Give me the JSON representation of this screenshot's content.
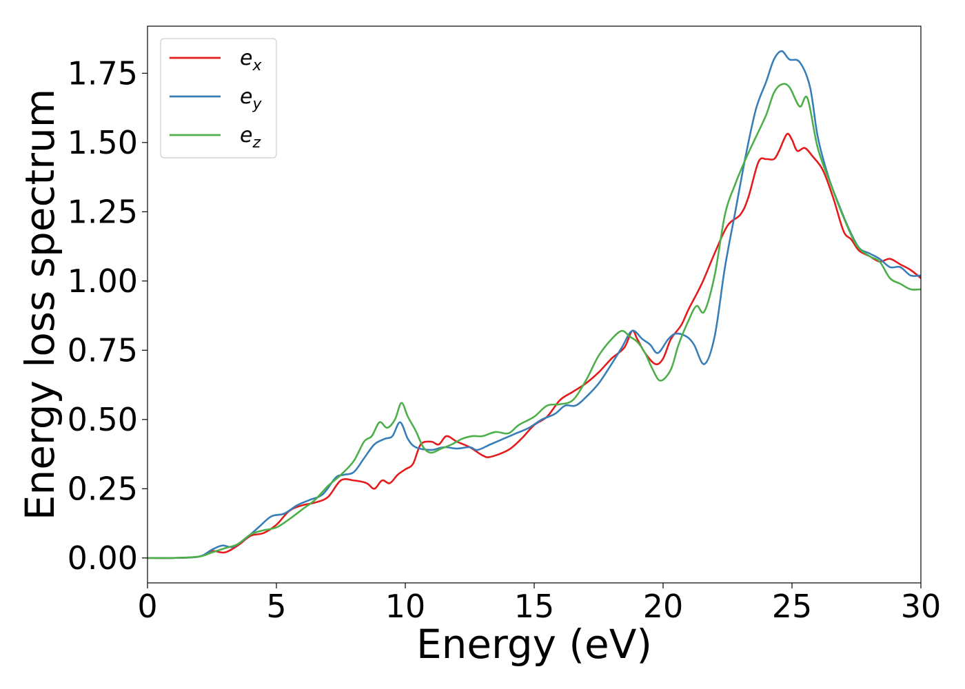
{
  "chart_data": {
    "type": "line",
    "title": "",
    "xlabel": "Energy (eV)",
    "ylabel": "Energy loss spectrum",
    "xlim": [
      0,
      30
    ],
    "ylim": [
      -0.09,
      1.92
    ],
    "xticks": [
      0,
      5,
      10,
      15,
      20,
      25,
      30
    ],
    "xtick_labels": [
      "0",
      "5",
      "10",
      "15",
      "20",
      "25",
      "30"
    ],
    "yticks": [
      0,
      0.25,
      0.5,
      0.75,
      1.0,
      1.25,
      1.5,
      1.75
    ],
    "ytick_labels": [
      "0.00",
      "0.25",
      "0.50",
      "0.75",
      "1.00",
      "1.25",
      "1.50",
      "1.75"
    ],
    "grid": false,
    "legend_position": "top-left",
    "series": [
      {
        "name": "e_x",
        "label_base": "e",
        "label_sub": "x",
        "color": "#e41a1c",
        "points": [
          [
            0,
            0
          ],
          [
            1,
            0
          ],
          [
            2,
            0.005
          ],
          [
            2.5,
            0.025
          ],
          [
            3,
            0.02
          ],
          [
            3.5,
            0.045
          ],
          [
            4,
            0.08
          ],
          [
            4.5,
            0.09
          ],
          [
            5,
            0.12
          ],
          [
            5.5,
            0.17
          ],
          [
            6,
            0.19
          ],
          [
            6.5,
            0.2
          ],
          [
            7,
            0.22
          ],
          [
            7.5,
            0.28
          ],
          [
            8,
            0.28
          ],
          [
            8.5,
            0.27
          ],
          [
            8.8,
            0.25
          ],
          [
            9.1,
            0.28
          ],
          [
            9.4,
            0.27
          ],
          [
            9.7,
            0.3
          ],
          [
            10,
            0.32
          ],
          [
            10.3,
            0.34
          ],
          [
            10.6,
            0.41
          ],
          [
            11,
            0.42
          ],
          [
            11.3,
            0.41
          ],
          [
            11.6,
            0.44
          ],
          [
            12,
            0.42
          ],
          [
            12.5,
            0.4
          ],
          [
            13,
            0.37
          ],
          [
            13.3,
            0.365
          ],
          [
            14,
            0.39
          ],
          [
            14.5,
            0.43
          ],
          [
            15,
            0.48
          ],
          [
            15.5,
            0.51
          ],
          [
            16,
            0.57
          ],
          [
            16.5,
            0.6
          ],
          [
            17,
            0.63
          ],
          [
            17.5,
            0.67
          ],
          [
            18,
            0.72
          ],
          [
            18.5,
            0.76
          ],
          [
            18.8,
            0.82
          ],
          [
            19,
            0.79
          ],
          [
            19.3,
            0.74
          ],
          [
            19.7,
            0.7
          ],
          [
            20,
            0.72
          ],
          [
            20.3,
            0.79
          ],
          [
            20.7,
            0.84
          ],
          [
            21,
            0.9
          ],
          [
            21.5,
            0.99
          ],
          [
            22,
            1.1
          ],
          [
            22.5,
            1.2
          ],
          [
            23,
            1.24
          ],
          [
            23.3,
            1.3
          ],
          [
            23.7,
            1.43
          ],
          [
            24,
            1.44
          ],
          [
            24.3,
            1.44
          ],
          [
            24.5,
            1.47
          ],
          [
            24.8,
            1.53
          ],
          [
            25,
            1.51
          ],
          [
            25.2,
            1.47
          ],
          [
            25.5,
            1.48
          ],
          [
            25.8,
            1.45
          ],
          [
            26.2,
            1.4
          ],
          [
            26.6,
            1.3
          ],
          [
            27,
            1.18
          ],
          [
            27.3,
            1.15
          ],
          [
            27.6,
            1.11
          ],
          [
            28,
            1.09
          ],
          [
            28.4,
            1.07
          ],
          [
            28.8,
            1.08
          ],
          [
            29.2,
            1.06
          ],
          [
            29.6,
            1.04
          ],
          [
            30,
            1.01
          ]
        ]
      },
      {
        "name": "e_y",
        "label_base": "e",
        "label_sub": "y",
        "color": "#377eb8",
        "points": [
          [
            0,
            0
          ],
          [
            1,
            0
          ],
          [
            2,
            0.005
          ],
          [
            2.5,
            0.03
          ],
          [
            2.9,
            0.045
          ],
          [
            3.3,
            0.04
          ],
          [
            3.8,
            0.07
          ],
          [
            4.3,
            0.11
          ],
          [
            4.8,
            0.15
          ],
          [
            5.3,
            0.16
          ],
          [
            5.8,
            0.19
          ],
          [
            6.3,
            0.21
          ],
          [
            6.8,
            0.23
          ],
          [
            7.3,
            0.29
          ],
          [
            7.6,
            0.3
          ],
          [
            8,
            0.31
          ],
          [
            8.4,
            0.36
          ],
          [
            8.8,
            0.41
          ],
          [
            9.2,
            0.43
          ],
          [
            9.5,
            0.44
          ],
          [
            9.8,
            0.49
          ],
          [
            10.1,
            0.43
          ],
          [
            10.4,
            0.4
          ],
          [
            11,
            0.39
          ],
          [
            11.5,
            0.4
          ],
          [
            12,
            0.395
          ],
          [
            12.5,
            0.4
          ],
          [
            12.8,
            0.39
          ],
          [
            13.3,
            0.41
          ],
          [
            13.8,
            0.43
          ],
          [
            14.3,
            0.45
          ],
          [
            14.8,
            0.47
          ],
          [
            15.3,
            0.5
          ],
          [
            15.8,
            0.52
          ],
          [
            16.2,
            0.55
          ],
          [
            16.6,
            0.55
          ],
          [
            17,
            0.58
          ],
          [
            17.5,
            0.63
          ],
          [
            18,
            0.7
          ],
          [
            18.4,
            0.76
          ],
          [
            18.8,
            0.82
          ],
          [
            19.2,
            0.79
          ],
          [
            19.5,
            0.77
          ],
          [
            19.8,
            0.74
          ],
          [
            20.2,
            0.79
          ],
          [
            20.5,
            0.81
          ],
          [
            20.9,
            0.8
          ],
          [
            21.2,
            0.77
          ],
          [
            21.6,
            0.7
          ],
          [
            22,
            0.8
          ],
          [
            22.4,
            1.05
          ],
          [
            22.8,
            1.25
          ],
          [
            23.2,
            1.45
          ],
          [
            23.6,
            1.62
          ],
          [
            24,
            1.72
          ],
          [
            24.3,
            1.8
          ],
          [
            24.6,
            1.83
          ],
          [
            24.9,
            1.8
          ],
          [
            25.3,
            1.79
          ],
          [
            25.7,
            1.7
          ],
          [
            26,
            1.52
          ],
          [
            26.4,
            1.38
          ],
          [
            26.8,
            1.28
          ],
          [
            27.2,
            1.19
          ],
          [
            27.6,
            1.12
          ],
          [
            28,
            1.1
          ],
          [
            28.4,
            1.08
          ],
          [
            28.8,
            1.05
          ],
          [
            29.2,
            1.05
          ],
          [
            29.6,
            1.02
          ],
          [
            30,
            1.02
          ]
        ]
      },
      {
        "name": "e_z",
        "label_base": "e",
        "label_sub": "z",
        "color": "#4daf4a",
        "points": [
          [
            0,
            0
          ],
          [
            1,
            0
          ],
          [
            2,
            0.005
          ],
          [
            2.5,
            0.02
          ],
          [
            3,
            0.035
          ],
          [
            3.5,
            0.05
          ],
          [
            4,
            0.085
          ],
          [
            4.5,
            0.1
          ],
          [
            5,
            0.11
          ],
          [
            5.5,
            0.14
          ],
          [
            6,
            0.175
          ],
          [
            6.5,
            0.21
          ],
          [
            7,
            0.26
          ],
          [
            7.5,
            0.3
          ],
          [
            8,
            0.35
          ],
          [
            8.4,
            0.42
          ],
          [
            8.7,
            0.44
          ],
          [
            9,
            0.49
          ],
          [
            9.3,
            0.47
          ],
          [
            9.6,
            0.5
          ],
          [
            9.85,
            0.56
          ],
          [
            10.1,
            0.51
          ],
          [
            10.4,
            0.46
          ],
          [
            10.7,
            0.4
          ],
          [
            11,
            0.38
          ],
          [
            11.4,
            0.395
          ],
          [
            11.8,
            0.41
          ],
          [
            12.2,
            0.43
          ],
          [
            12.6,
            0.44
          ],
          [
            13,
            0.44
          ],
          [
            13.5,
            0.455
          ],
          [
            14,
            0.45
          ],
          [
            14.4,
            0.48
          ],
          [
            15,
            0.51
          ],
          [
            15.5,
            0.55
          ],
          [
            16,
            0.555
          ],
          [
            16.5,
            0.57
          ],
          [
            17,
            0.64
          ],
          [
            17.5,
            0.73
          ],
          [
            18,
            0.79
          ],
          [
            18.4,
            0.82
          ],
          [
            18.7,
            0.8
          ],
          [
            19,
            0.78
          ],
          [
            19.3,
            0.74
          ],
          [
            19.6,
            0.68
          ],
          [
            19.9,
            0.64
          ],
          [
            20.3,
            0.68
          ],
          [
            20.6,
            0.77
          ],
          [
            21,
            0.86
          ],
          [
            21.3,
            0.91
          ],
          [
            21.6,
            0.89
          ],
          [
            22,
            1.02
          ],
          [
            22.4,
            1.24
          ],
          [
            22.8,
            1.35
          ],
          [
            23.2,
            1.44
          ],
          [
            23.6,
            1.52
          ],
          [
            24,
            1.6
          ],
          [
            24.3,
            1.68
          ],
          [
            24.6,
            1.71
          ],
          [
            24.9,
            1.7
          ],
          [
            25.3,
            1.63
          ],
          [
            25.6,
            1.66
          ],
          [
            26,
            1.48
          ],
          [
            26.5,
            1.35
          ],
          [
            27,
            1.23
          ],
          [
            27.5,
            1.13
          ],
          [
            28,
            1.09
          ],
          [
            28.4,
            1.07
          ],
          [
            28.8,
            1.01
          ],
          [
            29.2,
            0.99
          ],
          [
            29.6,
            0.97
          ],
          [
            30,
            0.97
          ]
        ]
      }
    ]
  }
}
